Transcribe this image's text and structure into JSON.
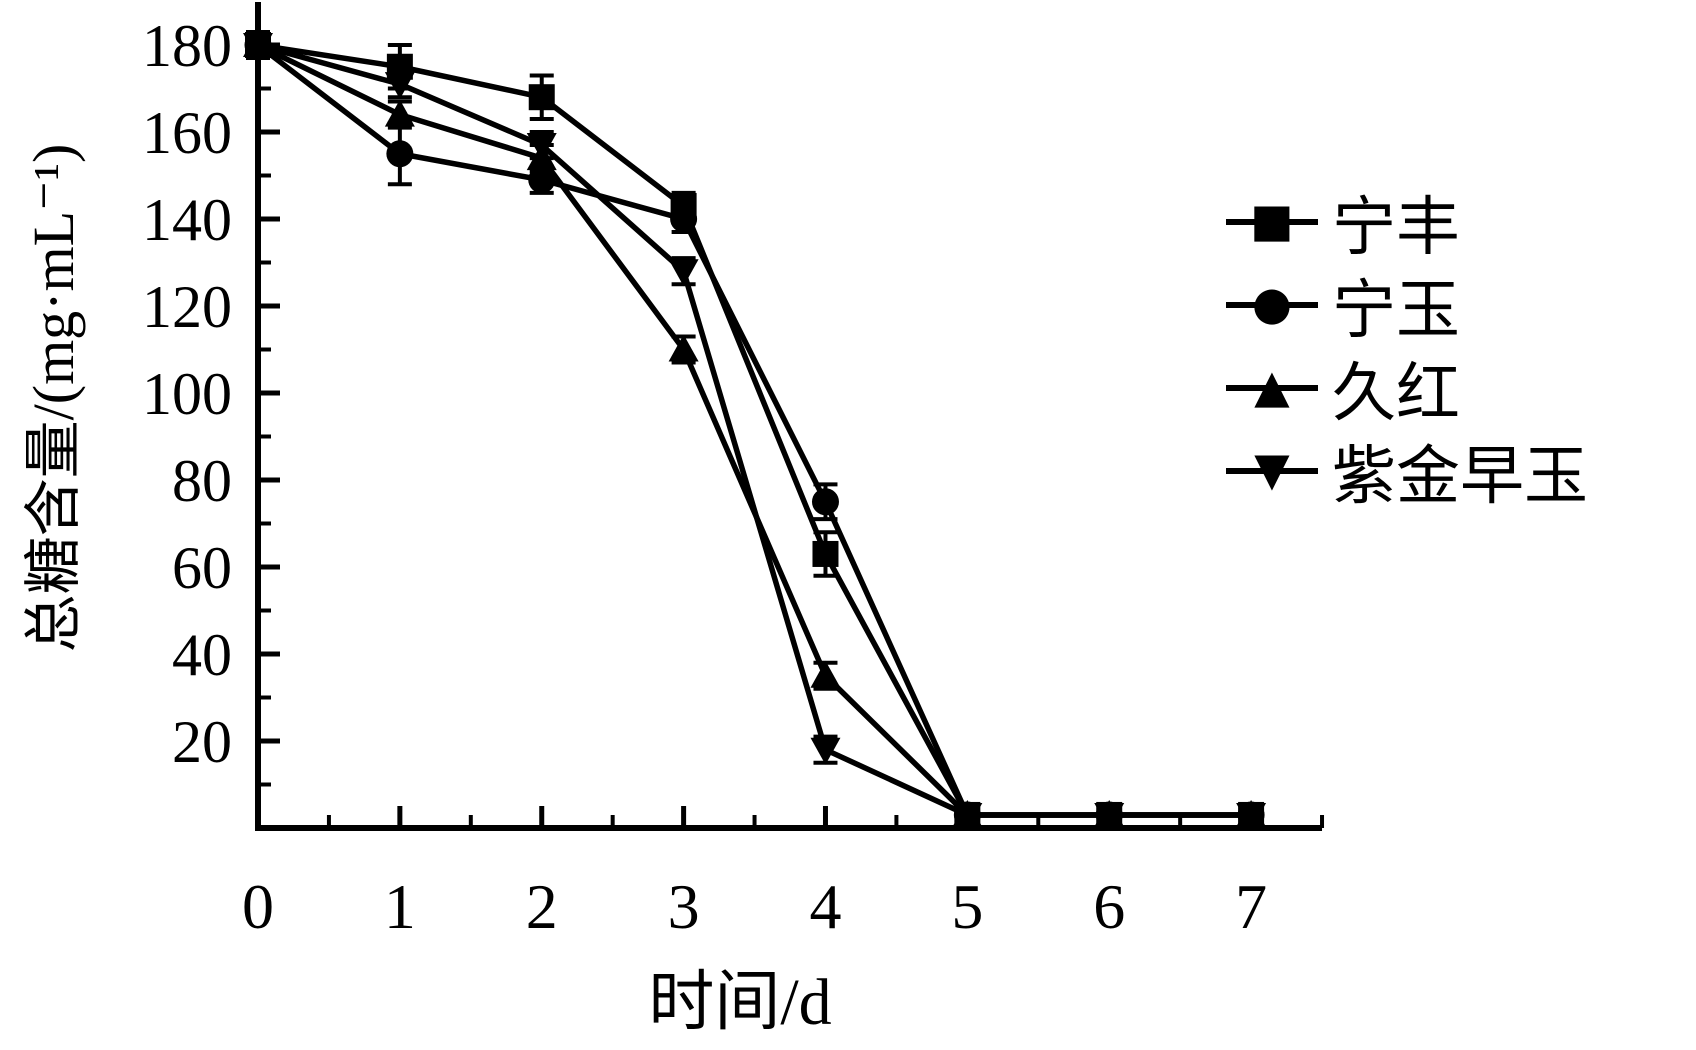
{
  "figure": {
    "background": "#ffffff",
    "ink": "#000000"
  },
  "chart_data": {
    "type": "line",
    "title": "",
    "xlabel": "时间/d",
    "ylabel": "总糖含量/(mg·mL⁻¹)",
    "x": [
      0,
      1,
      2,
      3,
      4,
      5,
      6,
      7
    ],
    "xlim": [
      0,
      7.5
    ],
    "ylim": [
      0,
      190
    ],
    "grid": false,
    "legend_position": "right-middle",
    "x_major_ticks": [
      0,
      1,
      2,
      3,
      4,
      5,
      6,
      7
    ],
    "x_minor_ticks": [
      0.5,
      1.5,
      2.5,
      3.5,
      4.5,
      5.5,
      6.5,
      7.5
    ],
    "x_tick_labels": [
      "0",
      "1",
      "2",
      "3",
      "4",
      "5",
      "6",
      "7"
    ],
    "y_major_ticks": [
      20,
      40,
      60,
      80,
      100,
      120,
      140,
      160,
      180
    ],
    "y_minor_ticks": [
      10,
      30,
      50,
      70,
      90,
      110,
      130,
      150,
      170
    ],
    "y_tick_labels": [
      "20",
      "40",
      "60",
      "80",
      "100",
      "120",
      "140",
      "160",
      "180"
    ],
    "series": [
      {
        "name": "宁丰",
        "marker": "square",
        "color": "#000000",
        "values": [
          180,
          175,
          168,
          143,
          63,
          3,
          3,
          3
        ],
        "errors": [
          3,
          5,
          5,
          3,
          5,
          2,
          2,
          2
        ]
      },
      {
        "name": "宁玉",
        "marker": "circle",
        "color": "#000000",
        "values": [
          180,
          155,
          149,
          140,
          75,
          3,
          3,
          3
        ],
        "errors": [
          3,
          7,
          3,
          3,
          4,
          2,
          2,
          2
        ]
      },
      {
        "name": "久红",
        "marker": "triangle-up",
        "color": "#000000",
        "values": [
          180,
          164,
          154,
          110,
          35,
          3,
          3,
          3
        ],
        "errors": [
          3,
          3,
          3,
          3,
          3,
          2,
          2,
          2
        ]
      },
      {
        "name": "紫金早玉",
        "marker": "triangle-down",
        "color": "#000000",
        "values": [
          180,
          171,
          157,
          128,
          18,
          3,
          3,
          3
        ],
        "errors": [
          3,
          3,
          3,
          3,
          3,
          2,
          2,
          2
        ]
      }
    ]
  },
  "legend": {
    "items": [
      {
        "label": "宁丰",
        "glyph": "■",
        "marker": "square"
      },
      {
        "label": "宁玉",
        "glyph": "●",
        "marker": "circle"
      },
      {
        "label": "久红",
        "glyph": "▲",
        "marker": "triangle-up"
      },
      {
        "label": "紫金早玉",
        "glyph": "▼",
        "marker": "triangle-down"
      }
    ]
  }
}
